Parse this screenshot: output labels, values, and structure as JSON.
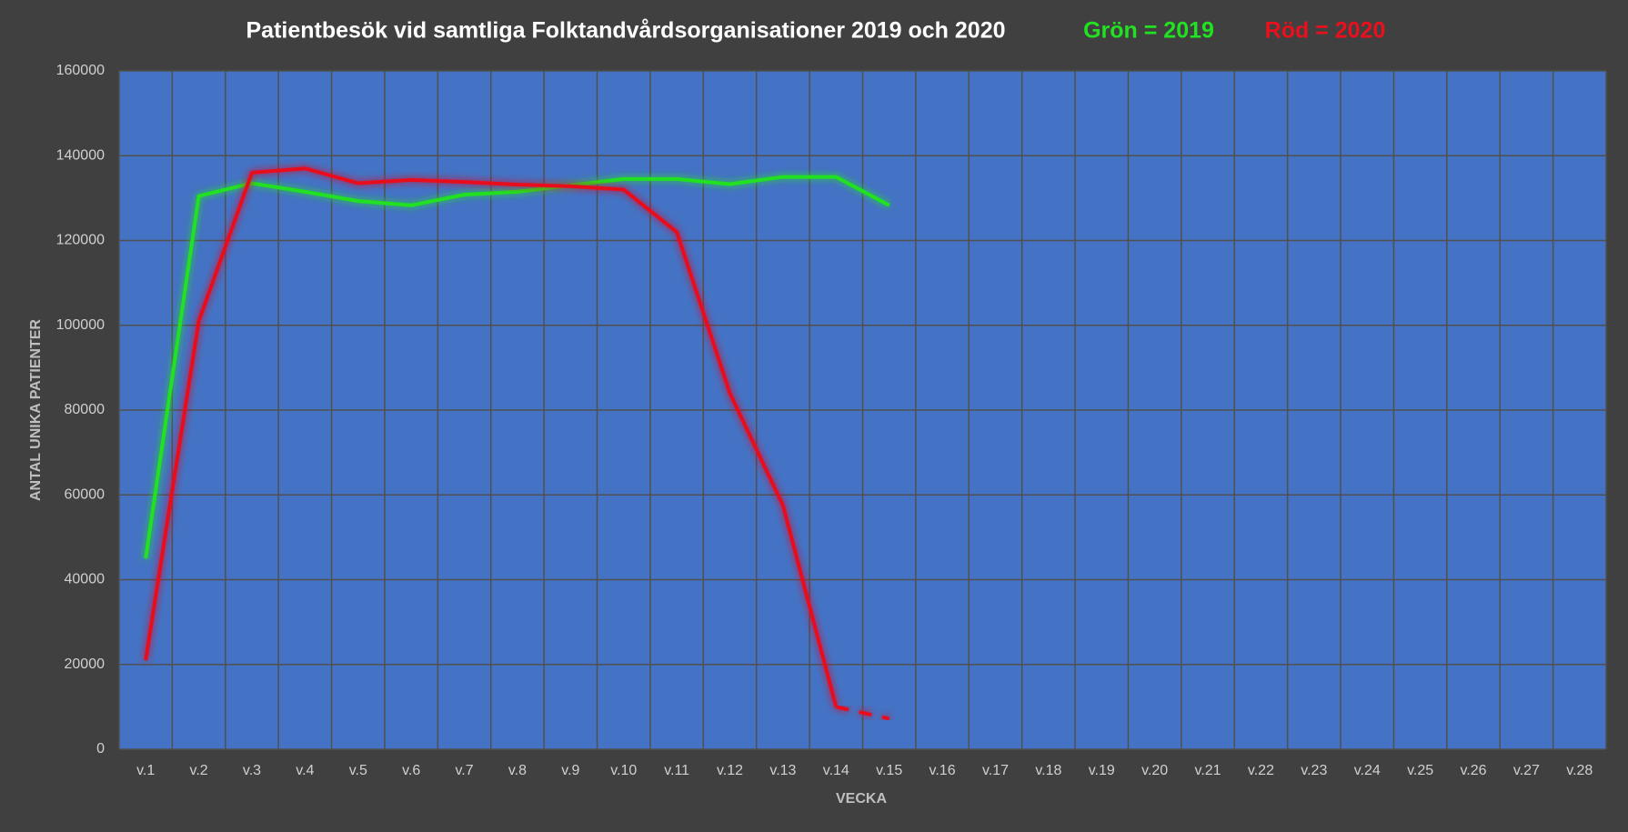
{
  "chart_data": {
    "type": "line",
    "title": "Patientbesök vid samtliga Folktandvårdsorganisationer 2019 och 2020",
    "xlabel": "VECKA",
    "ylabel": "ANTAL UNIKA PATIENTER",
    "categories": [
      "v.1",
      "v.2",
      "v.3",
      "v.4",
      "v.5",
      "v.6",
      "v.7",
      "v.8",
      "v.9",
      "v.10",
      "v.11",
      "v.12",
      "v.13",
      "v.14",
      "v.15",
      "v.16",
      "v.17",
      "v.18",
      "v.19",
      "v.20",
      "v.21",
      "v.22",
      "v.23",
      "v.24",
      "v.25",
      "v.26",
      "v.27",
      "v.28"
    ],
    "series": [
      {
        "name": "Grön = 2019",
        "color": "#22e022",
        "values": [
          45000,
          130500,
          133500,
          131500,
          129300,
          128300,
          130800,
          131500,
          133000,
          134500,
          134500,
          133300,
          135000,
          135000,
          128300,
          null,
          null,
          null,
          null,
          null,
          null,
          null,
          null,
          null,
          null,
          null,
          null,
          null
        ]
      },
      {
        "name": "Röd = 2020",
        "color": "#e8101c",
        "dash_last_segment": true,
        "values": [
          21000,
          101000,
          136000,
          137000,
          133500,
          134300,
          133800,
          133200,
          132800,
          132000,
          122000,
          84000,
          57500,
          10000,
          7200,
          null,
          null,
          null,
          null,
          null,
          null,
          null,
          null,
          null,
          null,
          null,
          null,
          null
        ]
      }
    ],
    "ylim": [
      0,
      160000
    ],
    "yticks": [
      0,
      20000,
      40000,
      60000,
      80000,
      100000,
      120000,
      140000,
      160000
    ],
    "grid": true
  }
}
